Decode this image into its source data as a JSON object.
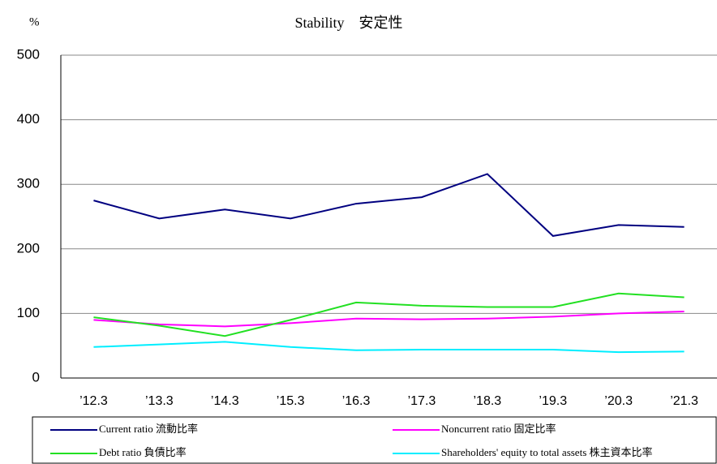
{
  "chart_data": {
    "type": "line",
    "title": "Stability　安定性",
    "y_label": "%",
    "categories": [
      "’12.3",
      "’13.3",
      "’14.3",
      "’15.3",
      "’16.3",
      "’17.3",
      "’18.3",
      "’19.3",
      "’20.3",
      "’21.3"
    ],
    "series": [
      {
        "name": "Current ratio  流動比率",
        "color": "#000080",
        "values": [
          275,
          247,
          261,
          247,
          270,
          280,
          316,
          220,
          237,
          234
        ]
      },
      {
        "name": "Noncurrent ratio 固定比率",
        "color": "#ff00ff",
        "values": [
          90,
          83,
          80,
          85,
          92,
          91,
          92,
          95,
          100,
          103
        ]
      },
      {
        "name": "Debt ratio 負債比率",
        "color": "#22e022",
        "values": [
          94,
          81,
          65,
          90,
          117,
          112,
          110,
          110,
          131,
          125
        ]
      },
      {
        "name": "Shareholders' equity to total assets 株主資本比率",
        "color": "#00eeff",
        "values": [
          48,
          52,
          56,
          48,
          43,
          44,
          44,
          44,
          40,
          41
        ]
      }
    ],
    "ylim": [
      0,
      500
    ],
    "yticks": [
      0,
      100,
      200,
      300,
      400,
      500
    ],
    "grid": true,
    "legend": "bottom"
  }
}
